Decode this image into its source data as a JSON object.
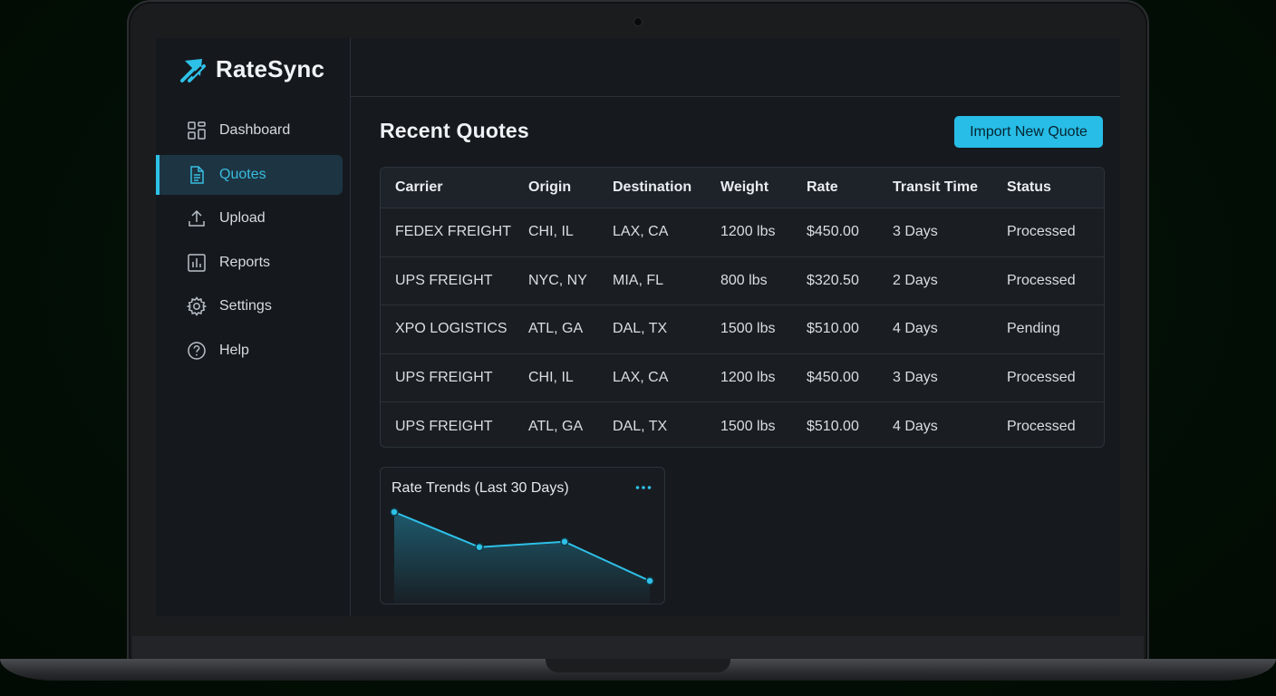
{
  "app": {
    "name": "RateSync"
  },
  "sidebar": {
    "items": [
      {
        "label": "Dashboard",
        "icon": "dashboard-icon",
        "active": false
      },
      {
        "label": "Quotes",
        "icon": "document-icon",
        "active": true
      },
      {
        "label": "Upload",
        "icon": "upload-icon",
        "active": false
      },
      {
        "label": "Reports",
        "icon": "bar-chart-icon",
        "active": false
      },
      {
        "label": "Settings",
        "icon": "gear-icon",
        "active": false
      },
      {
        "label": "Help",
        "icon": "help-icon",
        "active": false
      }
    ]
  },
  "main": {
    "title": "Recent Quotes",
    "import_button": "Import New Quote",
    "table": {
      "columns": [
        "Carrier",
        "Origin",
        "Destination",
        "Weight",
        "Rate",
        "Transit Time",
        "Status"
      ],
      "rows": [
        [
          "FEDEX FREIGHT",
          "CHI, IL",
          "LAX, CA",
          "1200 lbs",
          "$450.00",
          "3 Days",
          "Processed"
        ],
        [
          "UPS FREIGHT",
          "NYC, NY",
          "MIA, FL",
          "800 lbs",
          "$320.50",
          "2 Days",
          "Processed"
        ],
        [
          "XPO LOGISTICS",
          "ATL, GA",
          "DAL, TX",
          "1500 lbs",
          "$510.00",
          "4 Days",
          "Pending"
        ],
        [
          "UPS FREIGHT",
          "CHI, IL",
          "LAX, CA",
          "1200 lbs",
          "$450.00",
          "3 Days",
          "Processed"
        ],
        [
          "UPS FREIGHT",
          "ATL, GA",
          "DAL, TX",
          "1500 lbs",
          "$510.00",
          "4 Days",
          "Processed"
        ]
      ]
    },
    "trend_card": {
      "title": "Rate Trends (Last 30 Days)",
      "menu_icon": "more-horizontal-icon"
    }
  },
  "colors": {
    "accent": "#27bde6",
    "active_nav_bg": "#1d3442"
  },
  "chart_data": {
    "type": "area",
    "title": "Rate Trends (Last 30 Days)",
    "x": [
      1,
      2,
      3,
      4
    ],
    "values": [
      100,
      74,
      78,
      49
    ],
    "xlabel": "",
    "ylabel": "",
    "grid": false,
    "legend": false
  }
}
